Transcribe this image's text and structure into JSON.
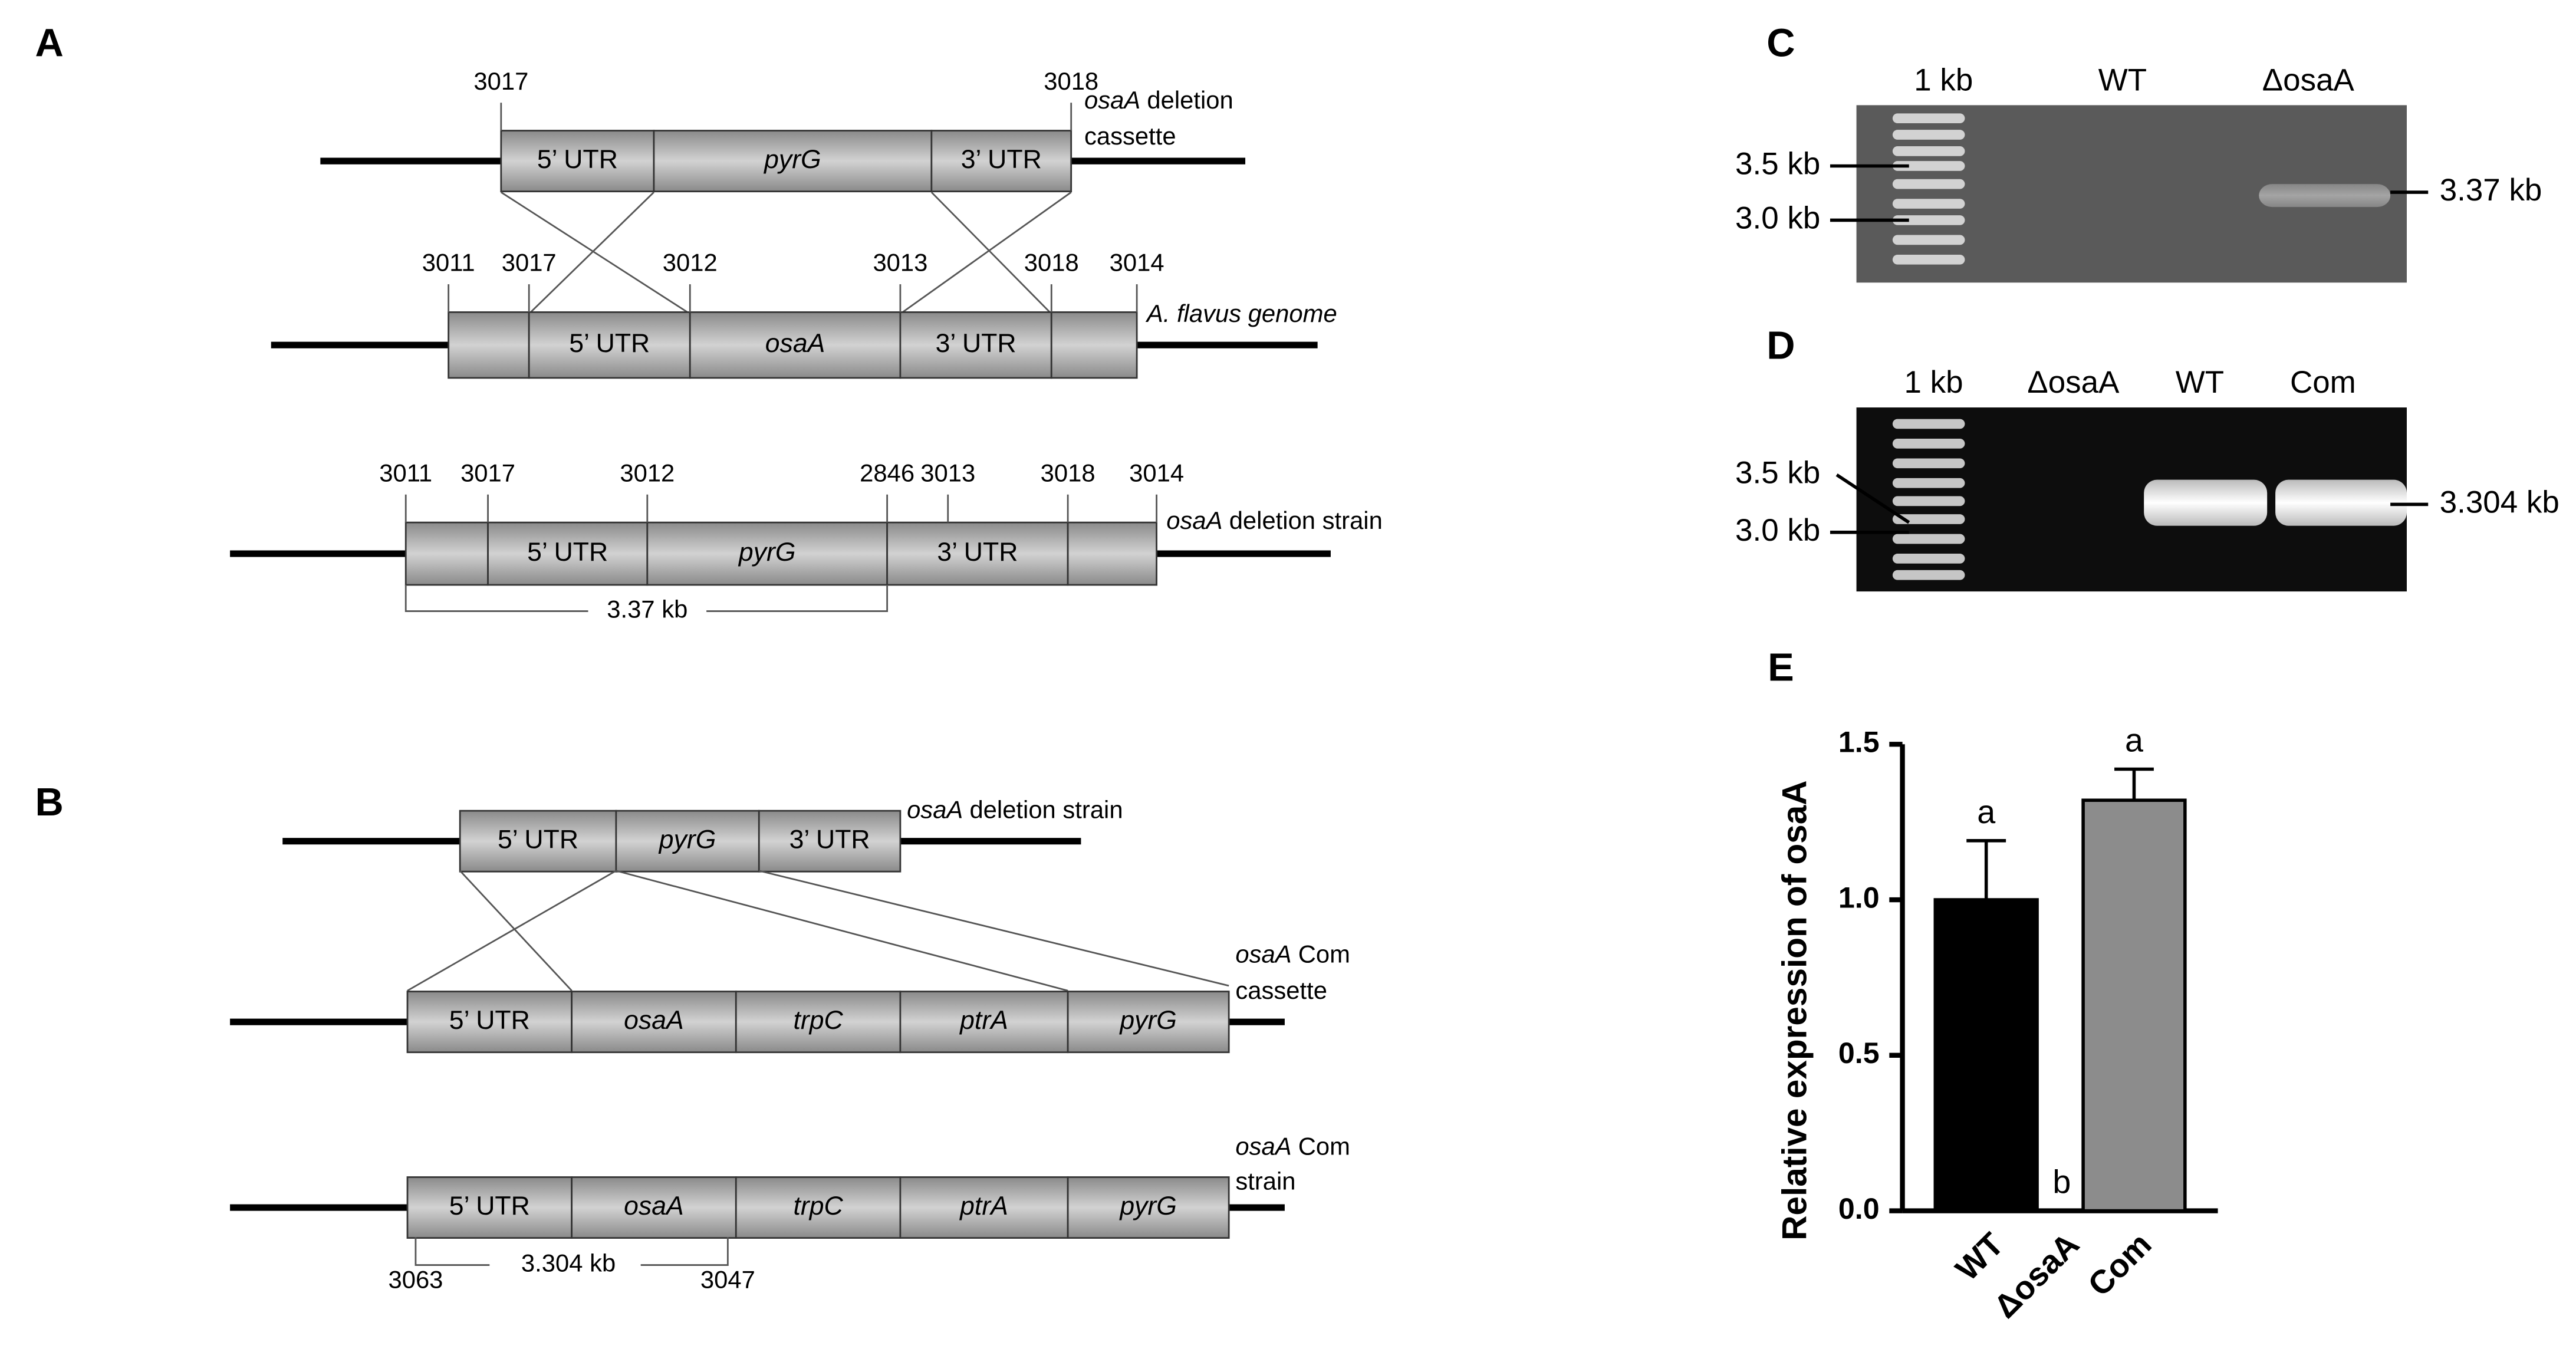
{
  "panel_a": {
    "label": "A",
    "cassette": {
      "primers": [
        "3017",
        "3018"
      ],
      "segments": [
        "5’ UTR",
        "pyrG",
        "3’ UTR"
      ],
      "name": {
        "gene": "osaA",
        "text": "deletion"
      },
      "name_line2": "cassette"
    },
    "genome": {
      "primers": [
        "3011",
        "3017",
        "3012",
        "3013",
        "3018",
        "3014"
      ],
      "segments": [
        "5’ UTR",
        "osaA",
        "3’ UTR"
      ],
      "name": "A. flavus genome"
    },
    "deletion_strain": {
      "primers": [
        "3011",
        "3017",
        "3012",
        "2846",
        "3013",
        "3018",
        "3014"
      ],
      "segments": [
        "5’ UTR",
        "pyrG",
        "3’ UTR"
      ],
      "name": {
        "gene": "osaA",
        "text": "deletion strain"
      },
      "product": "3.37 kb"
    }
  },
  "panel_b": {
    "label": "B",
    "deletion_strain": {
      "segments": [
        "5’ UTR",
        "pyrG",
        "3’ UTR"
      ],
      "name": {
        "gene": "osaA",
        "text": "deletion strain"
      }
    },
    "com_cassette": {
      "segments": [
        "5’ UTR",
        "osaA",
        "trpC",
        "ptrA",
        "pyrG"
      ],
      "name": {
        "gene": "osaA",
        "text": "Com"
      },
      "name_line2": "cassette"
    },
    "com_strain": {
      "segments": [
        "5’ UTR",
        "osaA",
        "trpC",
        "ptrA",
        "pyrG"
      ],
      "name": {
        "gene": "osaA",
        "text": "Com"
      },
      "name_line2": "strain",
      "product": "3.304 kb",
      "primers": [
        "3063",
        "3047"
      ]
    }
  },
  "panel_c": {
    "label": "C",
    "lanes": [
      "1 kb",
      "WT",
      "ΔosaA"
    ],
    "markers": [
      "3.5 kb",
      "3.0 kb"
    ],
    "band": "3.37 kb"
  },
  "panel_d": {
    "label": "D",
    "lanes": [
      "1 kb",
      "ΔosaA",
      "WT",
      "Com"
    ],
    "markers": [
      "3.5 kb",
      "3.0 kb"
    ],
    "band": "3.304 kb"
  },
  "chart_data": {
    "type": "bar",
    "panel_label": "E",
    "ylabel": "Relative expression of osaA",
    "categories": [
      "WT",
      "ΔosaA",
      "Com"
    ],
    "values": [
      1.0,
      0,
      1.32
    ],
    "errors": [
      0.19,
      0,
      0.1
    ],
    "colors": [
      "#000000",
      "#000000",
      "#8c8c8c"
    ],
    "annotations": [
      "a",
      "b",
      "a"
    ],
    "ylim": [
      0,
      1.5
    ],
    "yticks": [
      {
        "value": 0,
        "label": "0.0"
      },
      {
        "value": 0.5,
        "label": "0.5"
      },
      {
        "value": 1,
        "label": "1.0"
      },
      {
        "value": 1.5,
        "label": "1.5"
      }
    ]
  }
}
